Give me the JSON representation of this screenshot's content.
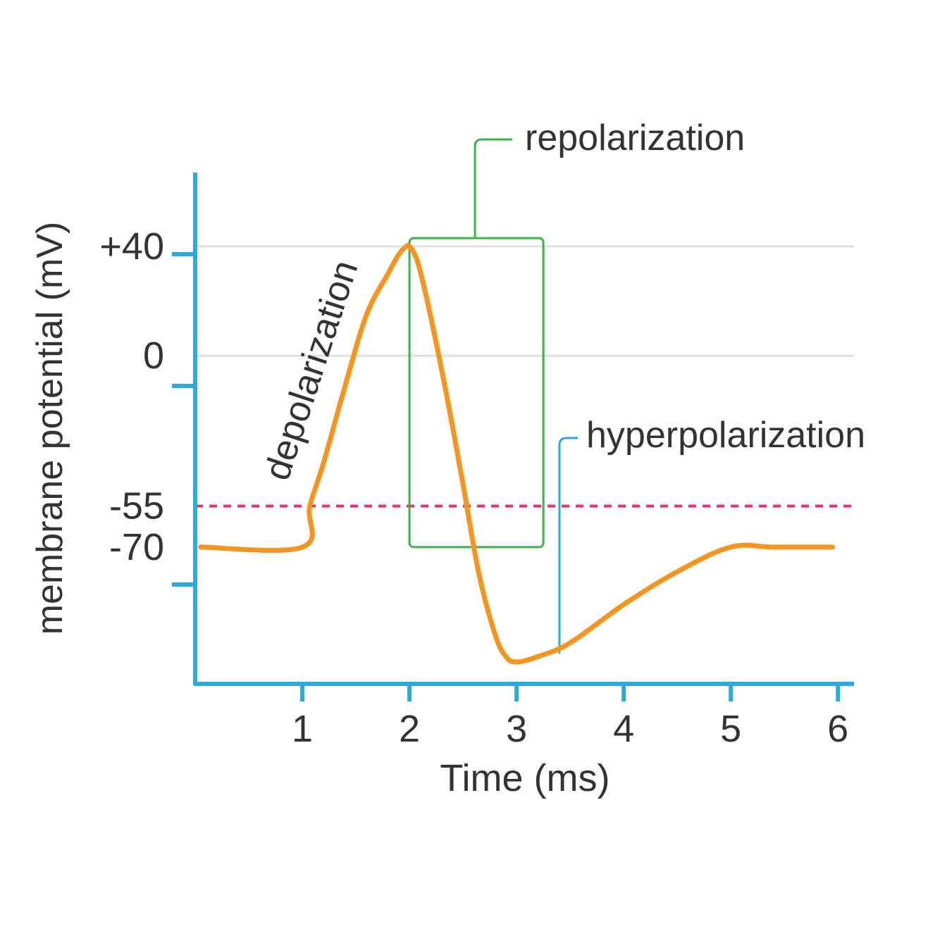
{
  "colors": {
    "axis": "#29abe2",
    "trace": "#f7941d",
    "threshold": "#ee2a7b",
    "repolarization": "#39b54a",
    "hyperpolarization": "#29abe2",
    "grid": "#e0e0e0",
    "text": "#333333"
  },
  "chart_data": {
    "type": "line",
    "title": "",
    "xlabel": "Time (ms)",
    "ylabel": "membrane potential (mV)",
    "xlim": [
      0,
      6.15
    ],
    "ylim": [
      -120,
      67
    ],
    "grid": "horizontal at +40 and 0",
    "x_ticks": [
      {
        "value": 1,
        "label": "1"
      },
      {
        "value": 2,
        "label": "2"
      },
      {
        "value": 3,
        "label": "3"
      },
      {
        "value": 4,
        "label": "4"
      },
      {
        "value": 5,
        "label": "5"
      },
      {
        "value": 6,
        "label": "6"
      }
    ],
    "y_ticks": [
      {
        "value": 40,
        "label": "+40"
      },
      {
        "value": 0,
        "label": "0"
      },
      {
        "value": -55,
        "label": "-55"
      },
      {
        "value": -70,
        "label": "-70"
      }
    ],
    "series": [
      {
        "x": [
          0.05,
          1.0,
          1.07,
          1.2,
          1.4,
          1.6,
          1.8,
          1.9,
          1.97,
          2.0,
          2.05,
          2.1,
          2.2,
          2.35,
          2.5,
          2.65,
          2.8,
          2.9,
          3.0,
          3.2,
          3.5,
          4.0,
          4.5,
          5.0,
          5.4,
          5.95
        ],
        "y": [
          -70,
          -70,
          -55,
          -39,
          -11,
          15,
          30,
          37,
          40,
          40,
          37,
          31,
          14,
          -15,
          -47,
          -80,
          -102,
          -110,
          -112,
          -110,
          -105,
          -91,
          -79,
          -70,
          -70,
          -70
        ]
      }
    ],
    "threshold": {
      "value": -55,
      "style": "dashed"
    },
    "annotations": [
      {
        "text": "depolarization",
        "kind": "rotated label along rising phase"
      },
      {
        "text": "repolarization",
        "kind": "bracketed box",
        "x_range": [
          2.0,
          3.25
        ],
        "y_range": [
          -70,
          43
        ]
      },
      {
        "text": "hyperpolarization",
        "kind": "leader line",
        "points_to": {
          "x": 3.4,
          "y": -109
        }
      }
    ]
  }
}
